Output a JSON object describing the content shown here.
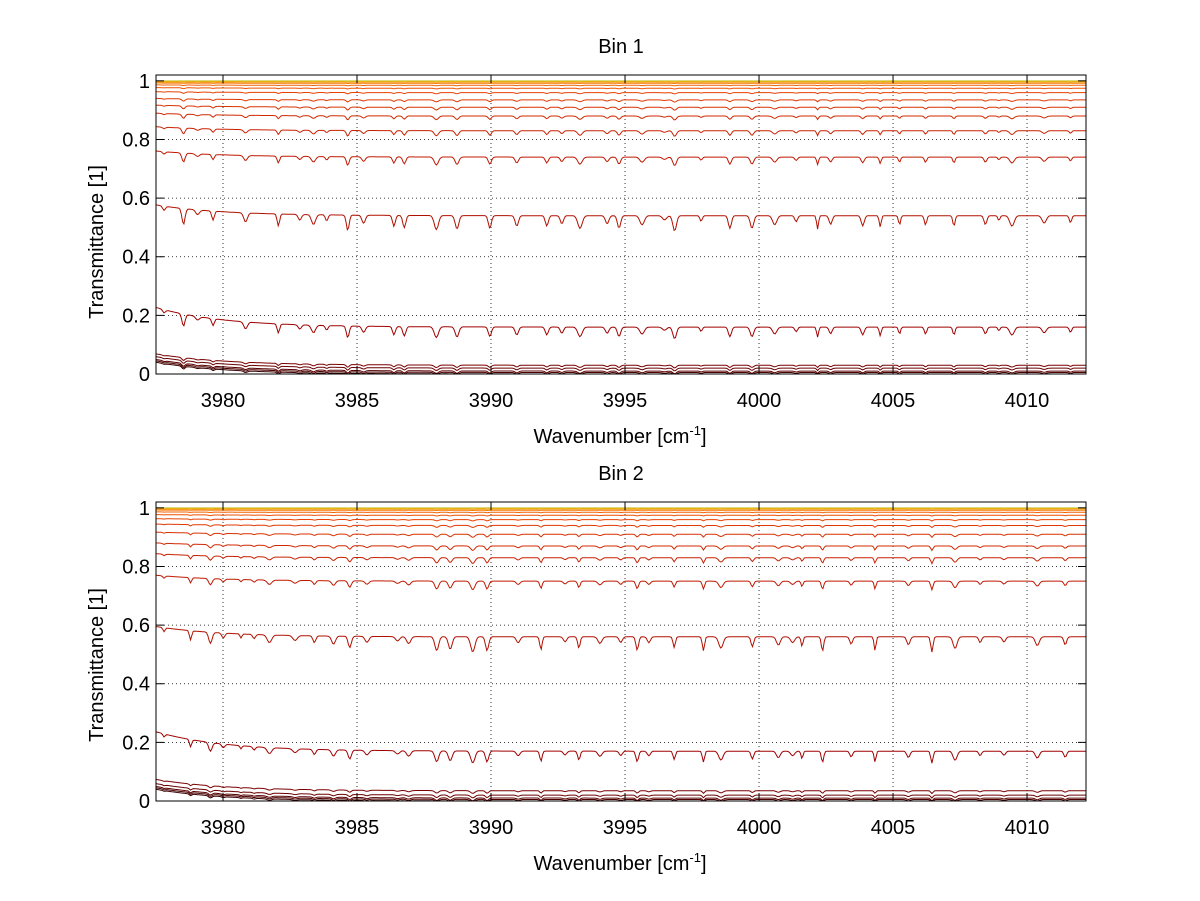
{
  "chart_data": [
    {
      "type": "line",
      "title": "Bin 1",
      "xlabel": "Wavenumber [cm",
      "xlabel_sup": "-1",
      "xlabel_end": "]",
      "ylabel": "Transmittance [1]",
      "xlim": [
        3977.5,
        4012.2
      ],
      "ylim": [
        0,
        1.02
      ],
      "xticks": [
        3980,
        3985,
        3990,
        3995,
        4000,
        4005,
        4010
      ],
      "xtick_labels": [
        "3980",
        "3985",
        "3990",
        "3995",
        "4000",
        "4005",
        "4010"
      ],
      "yticks": [
        0,
        0.2,
        0.4,
        0.6,
        0.8,
        1
      ],
      "ytick_labels": [
        "0",
        "0.2",
        "0.4",
        "0.6",
        "0.8",
        "1"
      ],
      "grid": true,
      "series_levels": [
        0.0,
        0.005,
        0.01,
        0.02,
        0.03,
        0.16,
        0.54,
        0.74,
        0.83,
        0.88,
        0.91,
        0.935,
        0.96,
        0.975,
        0.985,
        0.992,
        0.996,
        0.999,
        1.0
      ],
      "series_colors": [
        "#3a0000",
        "#4a0000",
        "#5a0000",
        "#6a0000",
        "#7a0000",
        "#a00000",
        "#b01000",
        "#c01800",
        "#c82000",
        "#d02800",
        "#d83000",
        "#e03800",
        "#e84000",
        "#ee5000",
        "#f26000",
        "#f67800",
        "#f89800",
        "#f0b800",
        "#c8c030"
      ]
    },
    {
      "type": "line",
      "title": "Bin 2",
      "xlabel": "Wavenumber [cm",
      "xlabel_sup": "-1",
      "xlabel_end": "]",
      "ylabel": "Transmittance [1]",
      "xlim": [
        3977.5,
        4012.2
      ],
      "ylim": [
        0,
        1.02
      ],
      "xticks": [
        3980,
        3985,
        3990,
        3995,
        4000,
        4005,
        4010
      ],
      "xtick_labels": [
        "3980",
        "3985",
        "3990",
        "3995",
        "4000",
        "4005",
        "4010"
      ],
      "yticks": [
        0,
        0.2,
        0.4,
        0.6,
        0.8,
        1
      ],
      "ytick_labels": [
        "0",
        "0.2",
        "0.4",
        "0.6",
        "0.8",
        "1"
      ],
      "grid": true,
      "series_levels": [
        0.0,
        0.005,
        0.01,
        0.02,
        0.035,
        0.17,
        0.56,
        0.75,
        0.83,
        0.87,
        0.91,
        0.94,
        0.96,
        0.975,
        0.985,
        0.992,
        0.996,
        0.999,
        1.0
      ],
      "series_colors": [
        "#3a0000",
        "#4a0000",
        "#5a0000",
        "#6a0000",
        "#7a0000",
        "#a00000",
        "#b01000",
        "#c01800",
        "#c82000",
        "#d02800",
        "#d83000",
        "#e03800",
        "#e84000",
        "#ee5000",
        "#f26000",
        "#f67800",
        "#f89800",
        "#f0b800",
        "#c8c030"
      ]
    }
  ]
}
